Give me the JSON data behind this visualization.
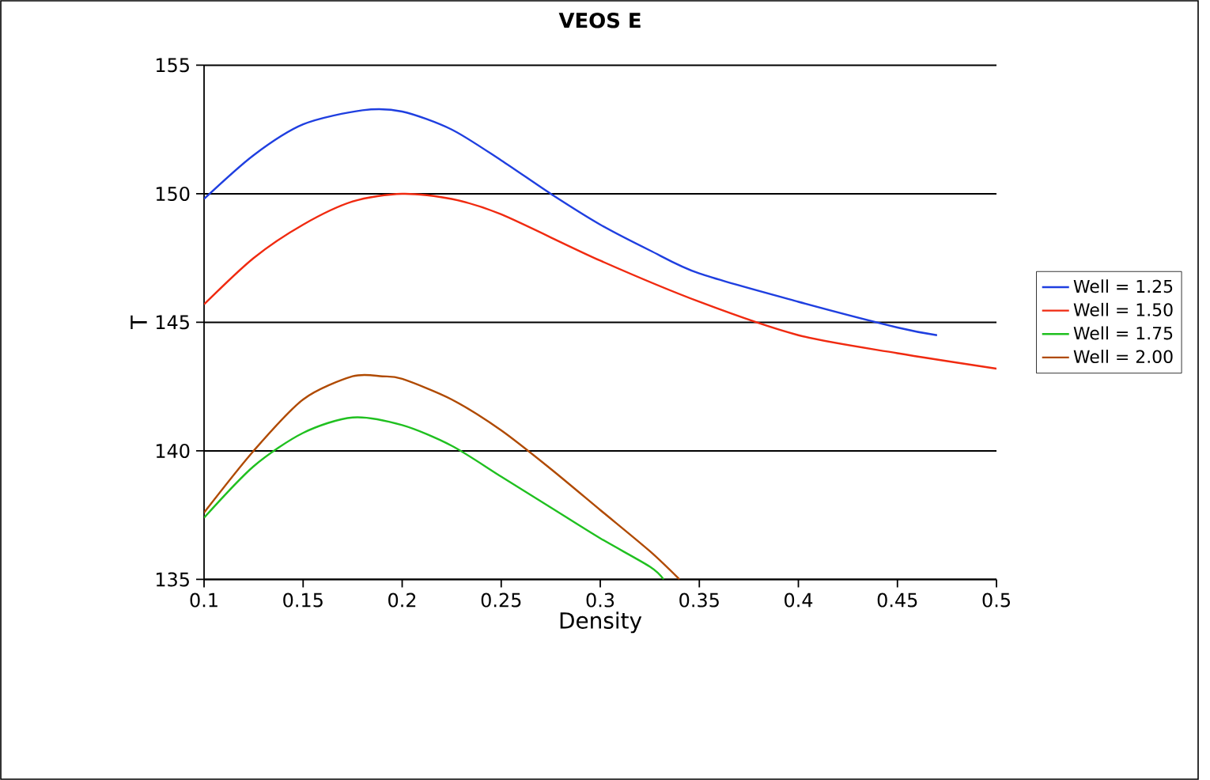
{
  "chart_data": {
    "type": "line",
    "title": "VEOS E",
    "xlabel": "Density",
    "ylabel": "T",
    "xlim": [
      0.1,
      0.5
    ],
    "xticks": [
      0.1,
      0.15,
      0.2,
      0.25,
      0.3,
      0.35,
      0.4,
      0.45,
      0.5
    ],
    "ylim": [
      135,
      155
    ],
    "yticks": [
      135,
      140,
      145,
      150,
      155
    ],
    "grid": "y",
    "legend": "right",
    "marker": "none",
    "line_style": "solid",
    "series": [
      {
        "name": "Well = 1.25",
        "color": "#1f3fe0",
        "x": [
          0.1,
          0.125,
          0.15,
          0.18,
          0.2,
          0.225,
          0.25,
          0.275,
          0.3,
          0.325,
          0.35,
          0.4,
          0.45,
          0.47
        ],
        "values": [
          149.8,
          151.5,
          152.7,
          153.25,
          153.2,
          152.5,
          151.3,
          150,
          148.8,
          147.8,
          146.9,
          145.8,
          144.8,
          144.5
        ]
      },
      {
        "name": "Well = 1.50",
        "color": "#f02a10",
        "x": [
          0.1,
          0.125,
          0.15,
          0.175,
          0.2,
          0.225,
          0.25,
          0.3,
          0.35,
          0.4,
          0.45,
          0.5
        ],
        "values": [
          145.7,
          147.5,
          148.8,
          149.7,
          150,
          149.8,
          149.2,
          147.4,
          145.8,
          144.5,
          143.8,
          143.2
        ]
      },
      {
        "name": "Well = 1.75",
        "color": "#20c020",
        "x": [
          0.1,
          0.125,
          0.15,
          0.175,
          0.2,
          0.225,
          0.25,
          0.275,
          0.3,
          0.325,
          0.332
        ],
        "values": [
          137.4,
          139.4,
          140.7,
          141.3,
          141.0,
          140.2,
          139.0,
          137.8,
          136.6,
          135.5,
          135.0
        ]
      },
      {
        "name": "Well = 2.00",
        "color": "#b04a00",
        "x": [
          0.1,
          0.125,
          0.15,
          0.175,
          0.19,
          0.2,
          0.225,
          0.25,
          0.275,
          0.3,
          0.325,
          0.34
        ],
        "values": [
          137.6,
          140.0,
          142.0,
          142.9,
          142.9,
          142.8,
          142.0,
          140.8,
          139.3,
          137.7,
          136.1,
          135.0
        ]
      }
    ]
  }
}
